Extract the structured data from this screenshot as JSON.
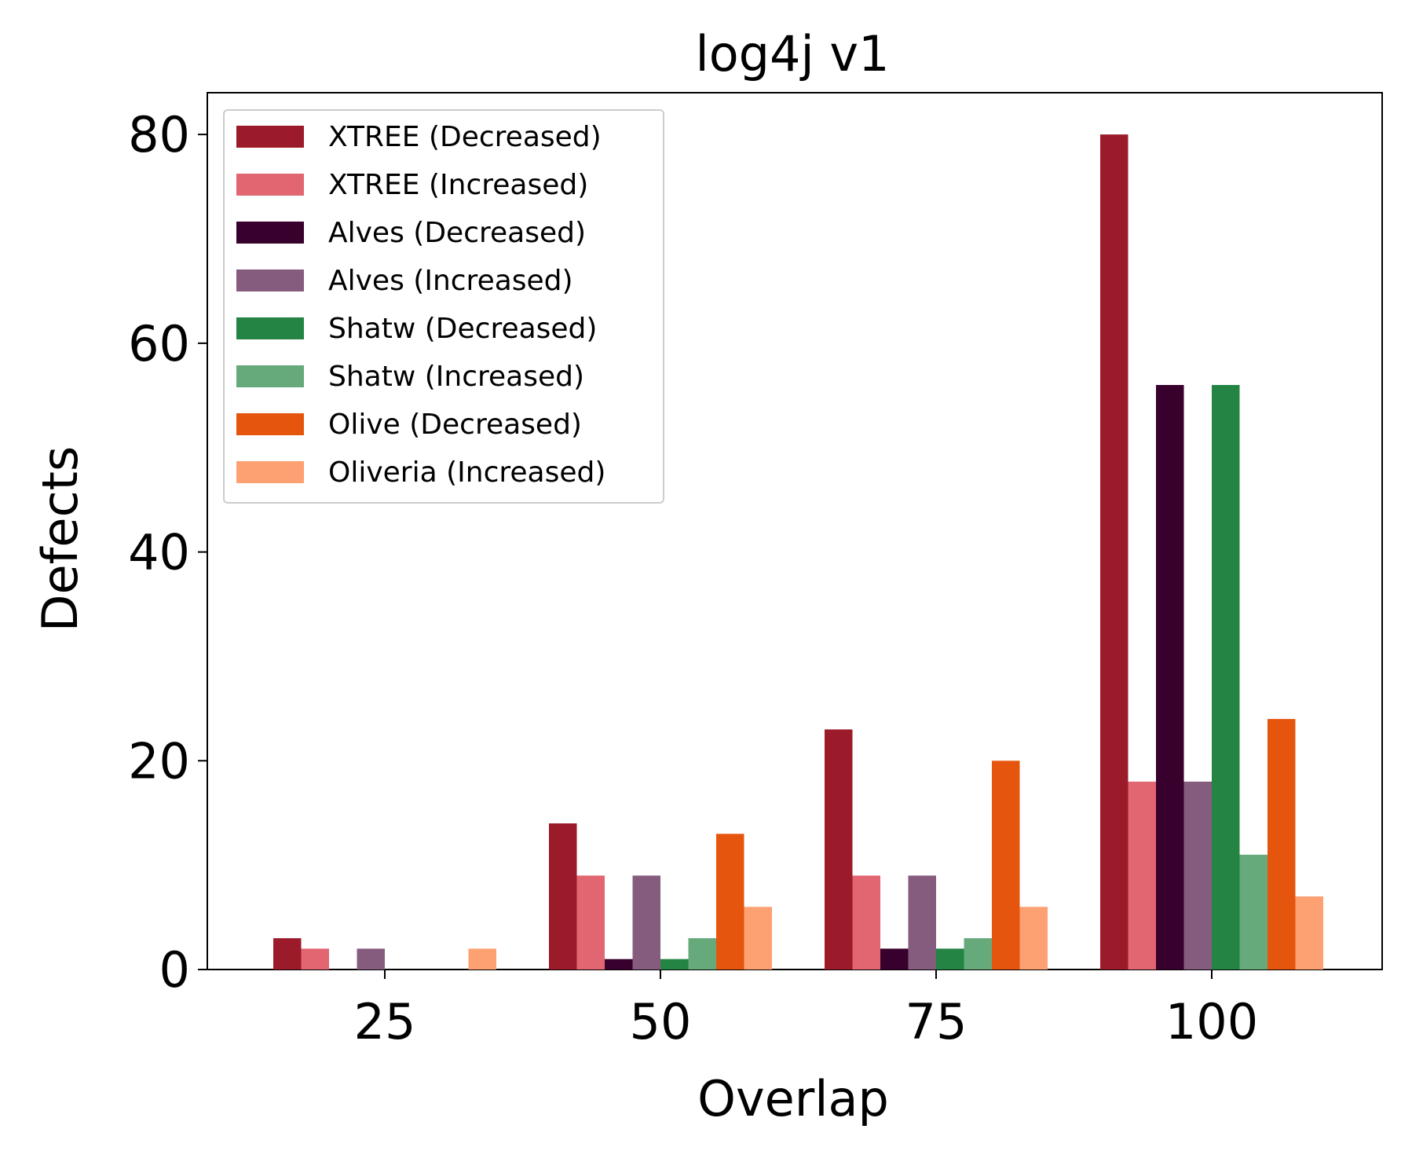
{
  "chart_data": {
    "type": "bar",
    "title": "log4j v1",
    "xlabel": "Overlap",
    "ylabel": "Defects",
    "categories": [
      "25",
      "50",
      "75",
      "100"
    ],
    "x_ticks": [
      "25",
      "50",
      "75",
      "100"
    ],
    "y_ticks": [
      "0",
      "20",
      "40",
      "60",
      "80"
    ],
    "ylim": [
      0,
      84
    ],
    "grid": false,
    "legend_position": "top-left",
    "series": [
      {
        "name": "XTREE (Decreased)",
        "color": "#9b1b2a",
        "values": [
          3,
          14,
          23,
          80
        ]
      },
      {
        "name": "XTREE (Increased)",
        "color": "#e26672",
        "values": [
          2,
          9,
          9,
          18
        ]
      },
      {
        "name": "Alves (Decreased)",
        "color": "#38002c",
        "values": [
          0,
          1,
          2,
          56
        ]
      },
      {
        "name": "Alves (Increased)",
        "color": "#865c7e",
        "values": [
          2,
          9,
          9,
          18
        ]
      },
      {
        "name": "Shatw (Decreased)",
        "color": "#238443",
        "values": [
          0,
          1,
          2,
          56
        ]
      },
      {
        "name": "Shatw (Increased)",
        "color": "#66a97b",
        "values": [
          0,
          3,
          3,
          11
        ]
      },
      {
        "name": "Olive (Decreased)",
        "color": "#e6550d",
        "values": [
          0,
          13,
          20,
          24
        ]
      },
      {
        "name": "Oliveria (Increased)",
        "color": "#fda072",
        "values": [
          2,
          6,
          6,
          7
        ]
      }
    ]
  }
}
